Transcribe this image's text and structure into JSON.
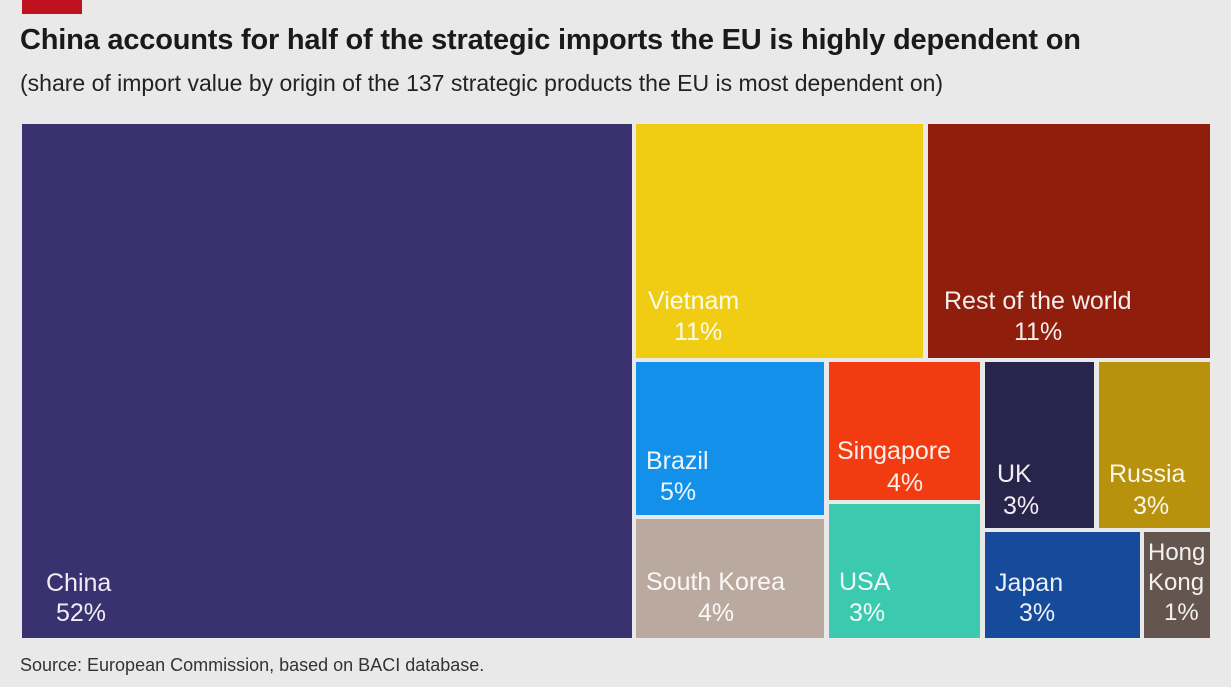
{
  "header": {
    "title": "China accounts for half of the strategic imports the EU is highly dependent on",
    "subtitle": "(share of import value by origin of the 137 strategic products the EU is most dependent on)"
  },
  "footer": {
    "source": "Source: European Commission, based on BACI database."
  },
  "colors": {
    "accent": "#c0111f"
  },
  "chart_data": {
    "type": "treemap",
    "title": "China accounts for half of the strategic imports the EU is highly dependent on",
    "subtitle": "(share of import value by origin of the 137 strategic products the EU is most dependent on)",
    "unit": "%",
    "items": [
      {
        "name": "China",
        "value": 52,
        "label": "52%",
        "color": "#3a3270"
      },
      {
        "name": "Vietnam",
        "value": 11,
        "label": "11%",
        "color": "#f0cc12"
      },
      {
        "name": "Rest of the world",
        "value": 11,
        "label": "11%",
        "color": "#8f1e0c"
      },
      {
        "name": "Brazil",
        "value": 5,
        "label": "5%",
        "color": "#1390ea"
      },
      {
        "name": "South Korea",
        "value": 4,
        "label": "4%",
        "color": "#b9a99f"
      },
      {
        "name": "Singapore",
        "value": 4,
        "label": "4%",
        "color": "#f23b10"
      },
      {
        "name": "USA",
        "value": 3,
        "label": "3%",
        "color": "#3bc9b0"
      },
      {
        "name": "UK",
        "value": 3,
        "label": "3%",
        "color": "#28244c"
      },
      {
        "name": "Russia",
        "value": 3,
        "label": "3%",
        "color": "#b8920d"
      },
      {
        "name": "Japan",
        "value": 3,
        "label": "3%",
        "color": "#164a9a"
      },
      {
        "name": "Hong Kong",
        "value": 1,
        "label": "1%",
        "color": "#64554f"
      }
    ]
  }
}
